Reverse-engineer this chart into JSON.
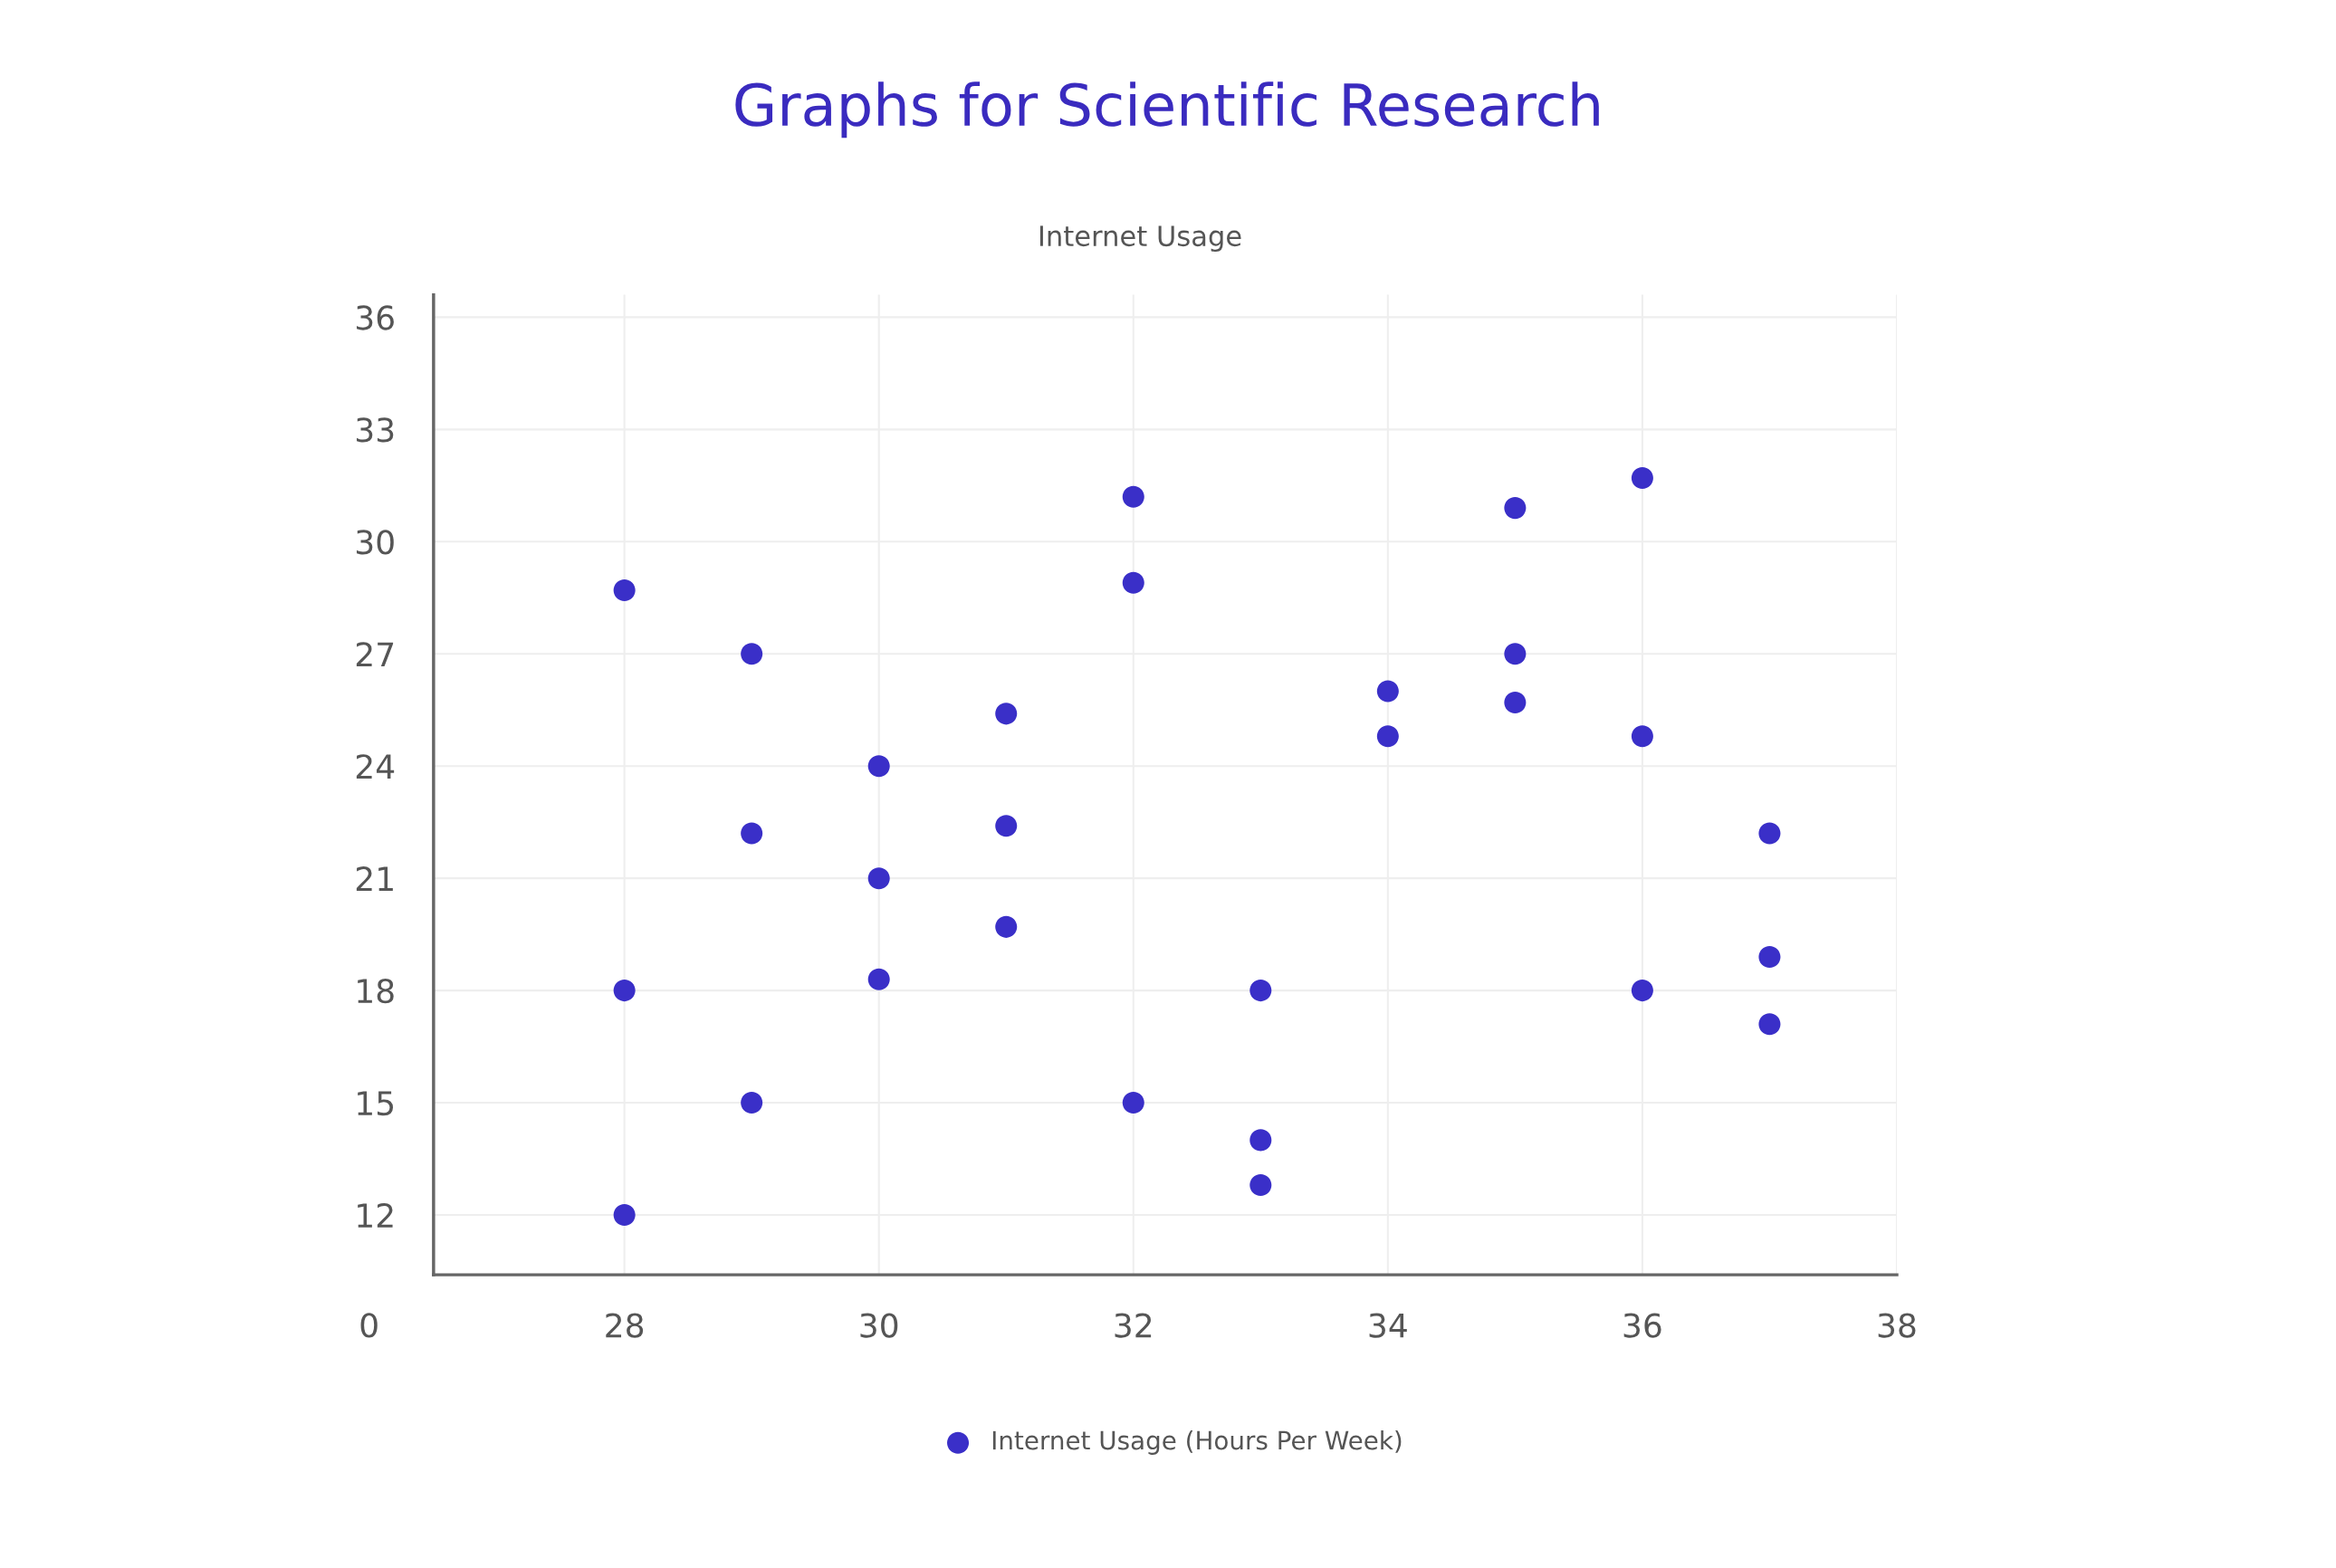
{
  "chart_data": {
    "type": "scatter",
    "title": "Graphs for Scientific Research",
    "subtitle": "Internet Usage",
    "series": [
      {
        "name": "Internet Usage (Hours Per Week)",
        "color": "#3a2fc8",
        "x": [
          28,
          28,
          28,
          29,
          29,
          29,
          30,
          30,
          30,
          31,
          31,
          31,
          32,
          32,
          32,
          33,
          33,
          33,
          34,
          34,
          35,
          35,
          35,
          36,
          36,
          36,
          37,
          37,
          37
        ],
        "values": [
          28.7,
          18,
          12,
          27,
          22.2,
          15,
          24,
          21,
          18.3,
          25.4,
          22.4,
          19.7,
          31.2,
          28.9,
          15,
          18,
          14,
          12.8,
          26,
          24.8,
          30.9,
          27,
          25.7,
          31.7,
          24.8,
          18,
          22.2,
          18.9,
          17.1
        ]
      }
    ],
    "xlim": [
      26.5,
      38
    ],
    "xticks": [
      28,
      30,
      32,
      34,
      36,
      38
    ],
    "ylim": [
      10.4,
      36.6
    ],
    "yticks": [
      12,
      15,
      18,
      21,
      24,
      27,
      30,
      33,
      36
    ],
    "annotations": [
      "0"
    ],
    "grid": true,
    "legend": "bottom",
    "marker": "circle"
  }
}
